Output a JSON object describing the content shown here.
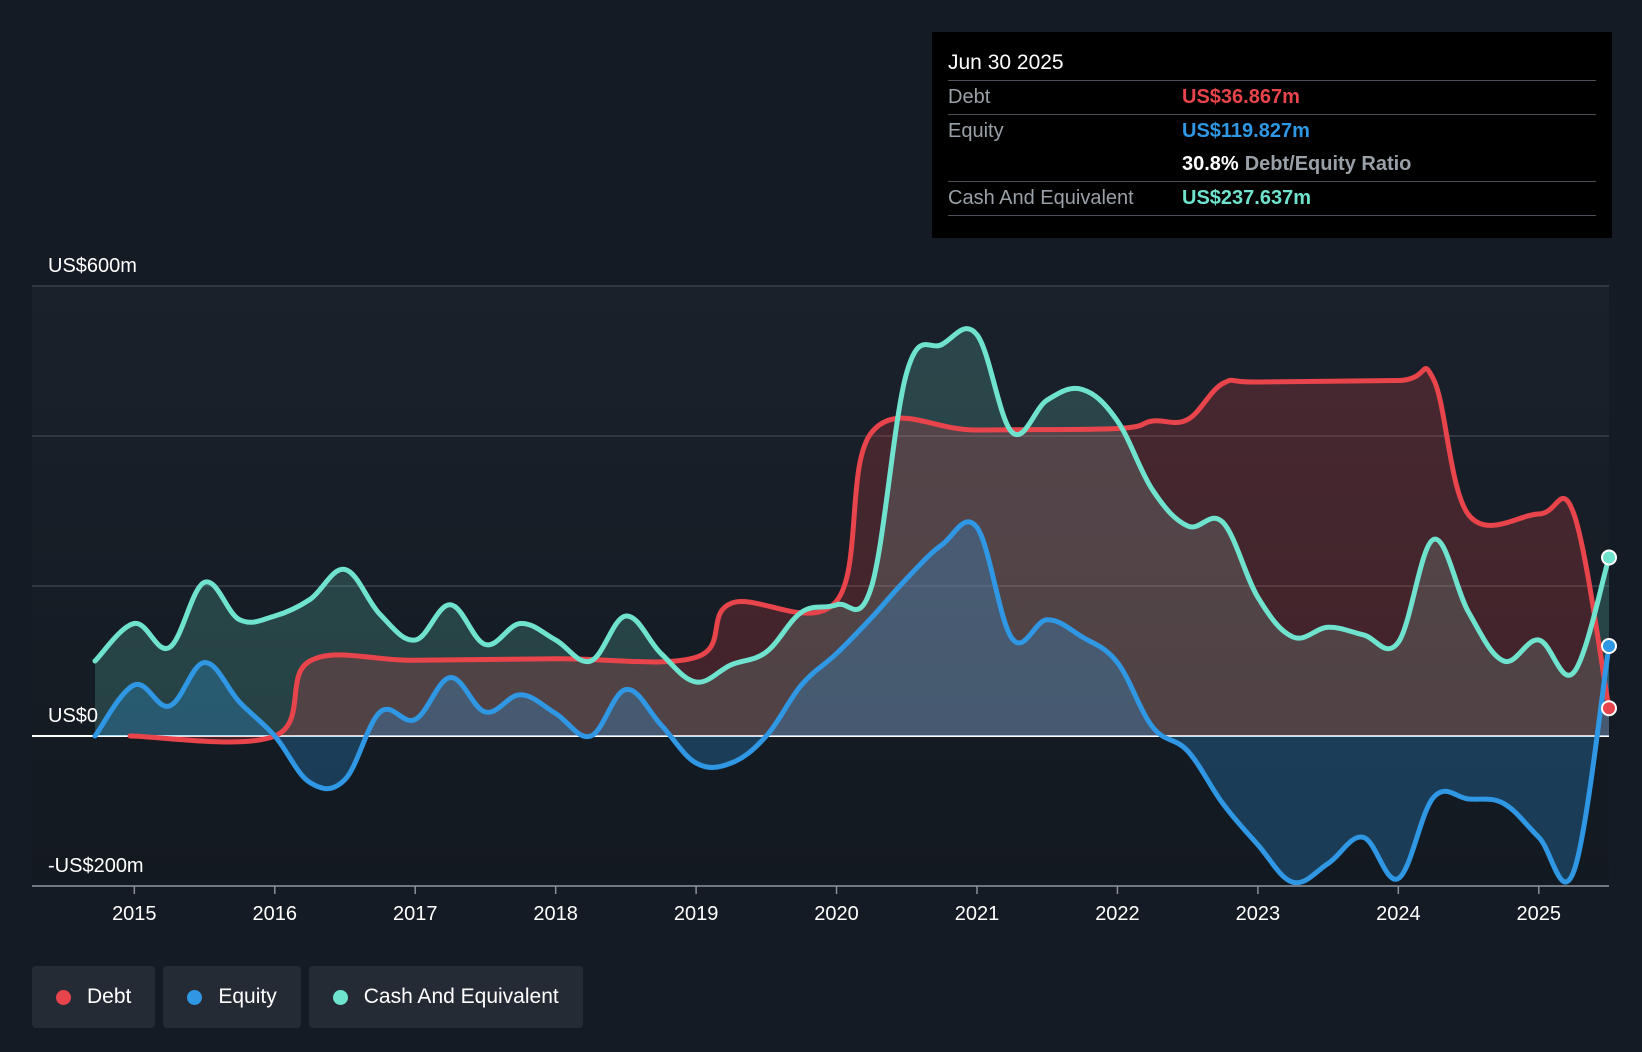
{
  "colors": {
    "background": "#151b24",
    "debt": "#e8444b",
    "equity": "#2f97e3",
    "cash": "#6fe3cd",
    "grid": "#3a4049",
    "zero_line": "#ffffff"
  },
  "tooltip": {
    "date": "Jun 30 2025",
    "debt_label": "Debt",
    "debt_value": "US$36.867m",
    "equity_label": "Equity",
    "equity_value": "US$119.827m",
    "ratio_value": "30.8%",
    "ratio_label": "Debt/Equity Ratio",
    "cash_label": "Cash And Equivalent",
    "cash_value": "US$237.637m"
  },
  "legend": [
    {
      "label": "Debt",
      "color": "#e8444b"
    },
    {
      "label": "Equity",
      "color": "#2f97e3"
    },
    {
      "label": "Cash And Equivalent",
      "color": "#6fe3cd"
    }
  ],
  "chart_data": {
    "type": "area",
    "title": "",
    "xlabel": "",
    "ylabel": "",
    "ylim": [
      -200,
      600
    ],
    "y_ticks": [
      {
        "value": 600,
        "label": "US$600m"
      },
      {
        "value": 0,
        "label": "US$0"
      },
      {
        "value": -200,
        "label": "-US$200m"
      }
    ],
    "gridlines": [
      600,
      400,
      200,
      0,
      -200
    ],
    "x_ticks": [
      "2015",
      "2016",
      "2017",
      "2018",
      "2019",
      "2020",
      "2021",
      "2022",
      "2023",
      "2024",
      "2025"
    ],
    "xlim": [
      2014.72,
      2025.5
    ],
    "legend_position": "bottom-left",
    "series": [
      {
        "name": "Debt",
        "color": "#e8444b",
        "points": [
          [
            2014.97,
            0
          ],
          [
            2016.0,
            0
          ],
          [
            2016.25,
            100
          ],
          [
            2017.0,
            101
          ],
          [
            2018.0,
            103
          ],
          [
            2019.0,
            105
          ],
          [
            2019.25,
            177
          ],
          [
            2020.0,
            180
          ],
          [
            2020.25,
            405
          ],
          [
            2021.0,
            408
          ],
          [
            2022.0,
            410
          ],
          [
            2022.25,
            420
          ],
          [
            2022.5,
            422
          ],
          [
            2022.75,
            470
          ],
          [
            2023.0,
            472
          ],
          [
            2024.0,
            474
          ],
          [
            2024.25,
            476
          ],
          [
            2024.5,
            295
          ],
          [
            2025.0,
            296
          ],
          [
            2025.25,
            296
          ],
          [
            2025.5,
            37
          ]
        ]
      },
      {
        "name": "Equity",
        "color": "#2f97e3",
        "points": [
          [
            2014.72,
            0
          ],
          [
            2015.0,
            68
          ],
          [
            2015.25,
            40
          ],
          [
            2015.5,
            98
          ],
          [
            2015.75,
            45
          ],
          [
            2016.0,
            0
          ],
          [
            2016.25,
            -62
          ],
          [
            2016.5,
            -58
          ],
          [
            2016.75,
            32
          ],
          [
            2017.0,
            22
          ],
          [
            2017.25,
            78
          ],
          [
            2017.5,
            32
          ],
          [
            2017.75,
            55
          ],
          [
            2018.0,
            30
          ],
          [
            2018.25,
            0
          ],
          [
            2018.5,
            62
          ],
          [
            2018.75,
            15
          ],
          [
            2019.0,
            -36
          ],
          [
            2019.25,
            -36
          ],
          [
            2019.5,
            0
          ],
          [
            2019.75,
            68
          ],
          [
            2020.0,
            110
          ],
          [
            2020.25,
            158
          ],
          [
            2020.5,
            210
          ],
          [
            2020.75,
            255
          ],
          [
            2021.0,
            278
          ],
          [
            2021.25,
            130
          ],
          [
            2021.5,
            155
          ],
          [
            2021.75,
            132
          ],
          [
            2022.0,
            98
          ],
          [
            2022.25,
            12
          ],
          [
            2022.5,
            -20
          ],
          [
            2022.75,
            -90
          ],
          [
            2023.0,
            -145
          ],
          [
            2023.25,
            -195
          ],
          [
            2023.5,
            -170
          ],
          [
            2023.75,
            -135
          ],
          [
            2024.0,
            -190
          ],
          [
            2024.25,
            -82
          ],
          [
            2024.5,
            -84
          ],
          [
            2024.75,
            -90
          ],
          [
            2025.0,
            -135
          ],
          [
            2025.25,
            -180
          ],
          [
            2025.5,
            120
          ]
        ]
      },
      {
        "name": "Cash And Equivalent",
        "color": "#6fe3cd",
        "points": [
          [
            2014.72,
            100
          ],
          [
            2015.0,
            150
          ],
          [
            2015.25,
            118
          ],
          [
            2015.5,
            205
          ],
          [
            2015.75,
            155
          ],
          [
            2016.0,
            160
          ],
          [
            2016.25,
            182
          ],
          [
            2016.5,
            222
          ],
          [
            2016.75,
            162
          ],
          [
            2017.0,
            128
          ],
          [
            2017.25,
            175
          ],
          [
            2017.5,
            122
          ],
          [
            2017.75,
            150
          ],
          [
            2018.0,
            128
          ],
          [
            2018.25,
            100
          ],
          [
            2018.5,
            160
          ],
          [
            2018.75,
            110
          ],
          [
            2019.0,
            72
          ],
          [
            2019.25,
            95
          ],
          [
            2019.5,
            112
          ],
          [
            2019.75,
            165
          ],
          [
            2020.0,
            175
          ],
          [
            2020.25,
            200
          ],
          [
            2020.5,
            485
          ],
          [
            2020.75,
            522
          ],
          [
            2021.0,
            535
          ],
          [
            2021.25,
            405
          ],
          [
            2021.5,
            448
          ],
          [
            2021.75,
            462
          ],
          [
            2022.0,
            420
          ],
          [
            2022.25,
            328
          ],
          [
            2022.5,
            280
          ],
          [
            2022.75,
            285
          ],
          [
            2023.0,
            185
          ],
          [
            2023.25,
            132
          ],
          [
            2023.5,
            145
          ],
          [
            2023.75,
            135
          ],
          [
            2024.0,
            125
          ],
          [
            2024.25,
            262
          ],
          [
            2024.5,
            165
          ],
          [
            2024.75,
            100
          ],
          [
            2025.0,
            128
          ],
          [
            2025.25,
            85
          ],
          [
            2025.5,
            238
          ]
        ]
      }
    ]
  }
}
